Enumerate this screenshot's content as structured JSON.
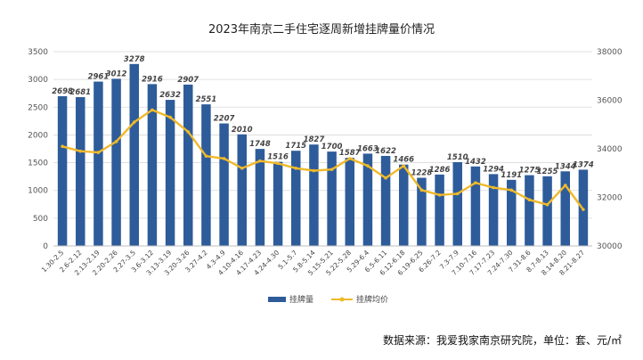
{
  "chart_data": {
    "type": "bar",
    "title": "2023年南京二手住宅逐周新增挂牌量价情况",
    "categories": [
      "1.30-2.5",
      "2.6-2.12",
      "2.13-2.19",
      "2.20-2.26",
      "2.27-3.5",
      "3.6-3.12",
      "3.13-3.19",
      "3.20-3.26",
      "3.27-4.2",
      "4.3-4.9",
      "4.10-4.16",
      "4.17-4.23",
      "4.24-4.30",
      "5.1-5.7",
      "5.8-5.14",
      "5.15-5.21",
      "5.22-5.28",
      "5.29-6.4",
      "6.5-6.11",
      "6.12-6.18",
      "6.19-6.25",
      "6.26-7.2",
      "7.3-7.9",
      "7.10-7.16",
      "7.17-7.23",
      "7.24-7.30",
      "7.31-8.6",
      "8.7-8.13",
      "8.14-8.20",
      "8.21-8.27"
    ],
    "series": [
      {
        "name": "挂牌量",
        "type": "bar",
        "axis": "left",
        "color": "#2e5c9a",
        "values": [
          2698,
          2681,
          2961,
          3012,
          3278,
          2916,
          2632,
          2907,
          2551,
          2207,
          2010,
          1748,
          1516,
          1715,
          1827,
          1700,
          1587,
          1663,
          1622,
          1466,
          1228,
          1286,
          1510,
          1432,
          1294,
          1191,
          1275,
          1255,
          1344,
          1374
        ]
      },
      {
        "name": "挂牌均价",
        "type": "line",
        "axis": "right",
        "color": "#f0b92a",
        "values": [
          34100,
          33900,
          33850,
          34300,
          35100,
          35600,
          35300,
          34700,
          33700,
          33600,
          33200,
          33500,
          33400,
          33200,
          33100,
          33150,
          33600,
          33300,
          32800,
          33300,
          32300,
          32100,
          32150,
          32600,
          32400,
          32300,
          31900,
          31700,
          32500,
          31500
        ]
      }
    ],
    "yleft": {
      "ylim": [
        0,
        3500
      ],
      "ticks": [
        0,
        500,
        1000,
        1500,
        2000,
        2500,
        3000,
        3500
      ]
    },
    "yright": {
      "ylim": [
        30000,
        38000
      ],
      "ticks": [
        30000,
        32000,
        34000,
        36000,
        38000
      ]
    },
    "grid": true,
    "legend_position": "bottom-center"
  },
  "legend": {
    "bar_label": "挂牌量",
    "line_label": "挂牌均价"
  },
  "source_note": "数据来源：我爱我家南京研究院，单位：套、元/㎡"
}
